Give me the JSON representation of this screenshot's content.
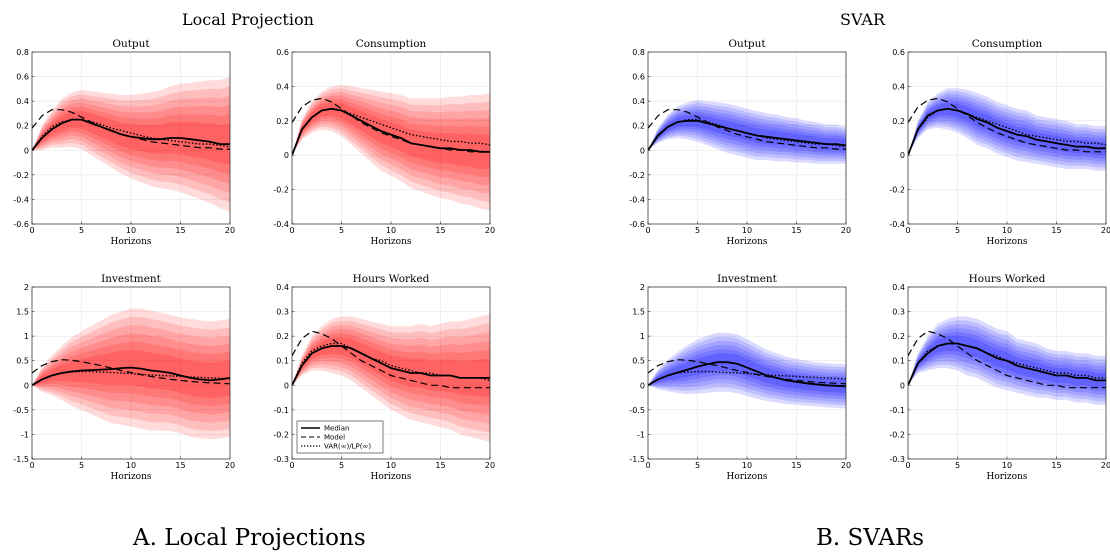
{
  "panels": [
    {
      "id": "lp",
      "title": "Local Projection",
      "caption": "A. Local Projections",
      "fan_color": "#ff0000"
    },
    {
      "id": "svar",
      "title": "SVAR",
      "caption": "B. SVARs",
      "fan_color": "#0000ff"
    }
  ],
  "legend": {
    "median": "Median",
    "model": "Model",
    "var_lp": "VAR(∞)/LP(∞)"
  },
  "chart_data": [
    {
      "type": "line",
      "panel": "lp",
      "title": "Output",
      "xlabel": "Horizons",
      "xlim": [
        0,
        20
      ],
      "ylim": [
        -0.6,
        0.8
      ],
      "xticks": [
        0,
        5,
        10,
        15,
        20
      ],
      "yticks": [
        -0.6,
        -0.4,
        -0.2,
        0,
        0.2,
        0.4,
        0.6,
        0.8
      ],
      "x": [
        0,
        1,
        2,
        3,
        4,
        5,
        6,
        7,
        8,
        9,
        10,
        11,
        12,
        13,
        14,
        15,
        16,
        17,
        18,
        19,
        20
      ],
      "series": [
        {
          "name": "Median",
          "values": [
            0,
            0.1,
            0.17,
            0.22,
            0.25,
            0.25,
            0.22,
            0.19,
            0.16,
            0.13,
            0.11,
            0.1,
            0.09,
            0.09,
            0.1,
            0.1,
            0.09,
            0.08,
            0.07,
            0.05,
            0.05
          ]
        },
        {
          "name": "Model",
          "values": [
            0.18,
            0.28,
            0.33,
            0.33,
            0.31,
            0.27,
            0.23,
            0.19,
            0.16,
            0.13,
            0.11,
            0.09,
            0.07,
            0.06,
            0.05,
            0.04,
            0.03,
            0.02,
            0.02,
            0.01,
            0.01
          ]
        },
        {
          "name": "VAR(∞)/LP(∞)",
          "values": [
            0,
            0.11,
            0.19,
            0.23,
            0.25,
            0.25,
            0.23,
            0.21,
            0.18,
            0.16,
            0.14,
            0.12,
            0.1,
            0.09,
            0.08,
            0.07,
            0.06,
            0.05,
            0.05,
            0.04,
            0.03
          ]
        }
      ],
      "band_halfwidth": [
        0,
        0.1,
        0.15,
        0.2,
        0.22,
        0.24,
        0.26,
        0.28,
        0.3,
        0.32,
        0.34,
        0.36,
        0.38,
        0.4,
        0.42,
        0.44,
        0.46,
        0.48,
        0.5,
        0.52,
        0.55
      ]
    },
    {
      "type": "line",
      "panel": "lp",
      "title": "Consumption",
      "xlabel": "Horizons",
      "xlim": [
        0,
        20
      ],
      "ylim": [
        -0.4,
        0.6
      ],
      "xticks": [
        0,
        5,
        10,
        15,
        20
      ],
      "yticks": [
        -0.4,
        -0.2,
        0,
        0.2,
        0.4,
        0.6
      ],
      "x": [
        0,
        1,
        2,
        3,
        4,
        5,
        6,
        7,
        8,
        9,
        10,
        11,
        12,
        13,
        14,
        15,
        16,
        17,
        18,
        19,
        20
      ],
      "series": [
        {
          "name": "Median",
          "values": [
            0,
            0.15,
            0.22,
            0.26,
            0.27,
            0.26,
            0.23,
            0.2,
            0.17,
            0.14,
            0.12,
            0.1,
            0.07,
            0.06,
            0.05,
            0.04,
            0.04,
            0.03,
            0.03,
            0.02,
            0.02
          ]
        },
        {
          "name": "Model",
          "values": [
            0.19,
            0.28,
            0.32,
            0.33,
            0.31,
            0.27,
            0.23,
            0.19,
            0.16,
            0.13,
            0.11,
            0.09,
            0.07,
            0.06,
            0.05,
            0.04,
            0.03,
            0.03,
            0.02,
            0.02,
            0.02
          ]
        },
        {
          "name": "VAR(∞)/LP(∞)",
          "values": [
            0,
            0.15,
            0.22,
            0.26,
            0.27,
            0.26,
            0.24,
            0.22,
            0.2,
            0.18,
            0.16,
            0.14,
            0.12,
            0.11,
            0.1,
            0.09,
            0.08,
            0.08,
            0.07,
            0.07,
            0.06
          ]
        }
      ],
      "band_halfwidth": [
        0,
        0.06,
        0.09,
        0.11,
        0.13,
        0.15,
        0.17,
        0.19,
        0.21,
        0.23,
        0.24,
        0.25,
        0.26,
        0.27,
        0.28,
        0.29,
        0.3,
        0.31,
        0.32,
        0.33,
        0.34
      ]
    },
    {
      "type": "line",
      "panel": "lp",
      "title": "Investment",
      "xlabel": "Horizons",
      "xlim": [
        0,
        20
      ],
      "ylim": [
        -1.5,
        2
      ],
      "xticks": [
        0,
        5,
        10,
        15,
        20
      ],
      "yticks": [
        -1.5,
        -1,
        -0.5,
        0,
        0.5,
        1,
        1.5,
        2
      ],
      "x": [
        0,
        1,
        2,
        3,
        4,
        5,
        6,
        7,
        8,
        9,
        10,
        11,
        12,
        13,
        14,
        15,
        16,
        17,
        18,
        19,
        20
      ],
      "series": [
        {
          "name": "Median",
          "values": [
            0,
            0.12,
            0.2,
            0.25,
            0.28,
            0.3,
            0.31,
            0.32,
            0.33,
            0.35,
            0.36,
            0.34,
            0.3,
            0.28,
            0.25,
            0.2,
            0.15,
            0.12,
            0.1,
            0.12,
            0.15
          ]
        },
        {
          "name": "Model",
          "values": [
            0.25,
            0.4,
            0.48,
            0.52,
            0.51,
            0.48,
            0.44,
            0.4,
            0.35,
            0.3,
            0.26,
            0.22,
            0.18,
            0.15,
            0.12,
            0.1,
            0.08,
            0.06,
            0.05,
            0.04,
            0.03
          ]
        },
        {
          "name": "VAR(∞)/LP(∞)",
          "values": [
            0,
            0.12,
            0.2,
            0.25,
            0.27,
            0.28,
            0.28,
            0.27,
            0.26,
            0.25,
            0.24,
            0.22,
            0.21,
            0.2,
            0.19,
            0.18,
            0.17,
            0.16,
            0.15,
            0.14,
            0.13
          ]
        }
      ],
      "band_halfwidth": [
        0,
        0.25,
        0.4,
        0.55,
        0.7,
        0.8,
        0.9,
        1.0,
        1.1,
        1.15,
        1.2,
        1.22,
        1.22,
        1.2,
        1.18,
        1.18,
        1.2,
        1.2,
        1.2,
        1.2,
        1.2
      ]
    },
    {
      "type": "line",
      "panel": "lp",
      "title": "Hours Worked",
      "xlabel": "Horizons",
      "xlim": [
        0,
        20
      ],
      "ylim": [
        -0.3,
        0.4
      ],
      "xticks": [
        0,
        5,
        10,
        15,
        20
      ],
      "yticks": [
        -0.3,
        -0.2,
        -0.1,
        0,
        0.1,
        0.2,
        0.3,
        0.4
      ],
      "x": [
        0,
        1,
        2,
        3,
        4,
        5,
        6,
        7,
        8,
        9,
        10,
        11,
        12,
        13,
        14,
        15,
        16,
        17,
        18,
        19,
        20
      ],
      "series": [
        {
          "name": "Median",
          "values": [
            0,
            0.08,
            0.13,
            0.15,
            0.16,
            0.16,
            0.15,
            0.13,
            0.11,
            0.09,
            0.07,
            0.06,
            0.05,
            0.05,
            0.04,
            0.04,
            0.04,
            0.03,
            0.03,
            0.03,
            0.03
          ]
        },
        {
          "name": "Model",
          "values": [
            0.12,
            0.19,
            0.22,
            0.21,
            0.19,
            0.16,
            0.13,
            0.1,
            0.08,
            0.06,
            0.04,
            0.03,
            0.02,
            0.01,
            0.0,
            0.0,
            -0.01,
            -0.01,
            -0.01,
            -0.01,
            -0.01
          ]
        },
        {
          "name": "VAR(∞)/LP(∞)",
          "values": [
            0,
            0.09,
            0.14,
            0.16,
            0.17,
            0.17,
            0.15,
            0.13,
            0.11,
            0.1,
            0.08,
            0.07,
            0.06,
            0.05,
            0.05,
            0.04,
            0.04,
            0.03,
            0.03,
            0.03,
            0.02
          ]
        }
      ],
      "band_halfwidth": [
        0,
        0.04,
        0.07,
        0.09,
        0.11,
        0.12,
        0.13,
        0.14,
        0.15,
        0.16,
        0.17,
        0.18,
        0.19,
        0.2,
        0.2,
        0.21,
        0.22,
        0.23,
        0.24,
        0.25,
        0.26
      ]
    },
    {
      "type": "line",
      "panel": "svar",
      "title": "Output",
      "xlabel": "Horizons",
      "xlim": [
        0,
        20
      ],
      "ylim": [
        -0.6,
        0.8
      ],
      "xticks": [
        0,
        5,
        10,
        15,
        20
      ],
      "yticks": [
        -0.6,
        -0.4,
        -0.2,
        0,
        0.2,
        0.4,
        0.6,
        0.8
      ],
      "x": [
        0,
        1,
        2,
        3,
        4,
        5,
        6,
        7,
        8,
        9,
        10,
        11,
        12,
        13,
        14,
        15,
        16,
        17,
        18,
        19,
        20
      ],
      "series": [
        {
          "name": "Median",
          "values": [
            0,
            0.12,
            0.19,
            0.23,
            0.24,
            0.24,
            0.22,
            0.2,
            0.18,
            0.16,
            0.14,
            0.12,
            0.11,
            0.1,
            0.09,
            0.08,
            0.07,
            0.06,
            0.05,
            0.05,
            0.04
          ]
        },
        {
          "name": "Model",
          "values": [
            0.18,
            0.28,
            0.33,
            0.33,
            0.31,
            0.27,
            0.23,
            0.19,
            0.16,
            0.13,
            0.11,
            0.09,
            0.07,
            0.06,
            0.05,
            0.04,
            0.03,
            0.02,
            0.02,
            0.01,
            0.01
          ]
        },
        {
          "name": "VAR(∞)/LP(∞)",
          "values": [
            0,
            0.11,
            0.19,
            0.23,
            0.25,
            0.25,
            0.23,
            0.21,
            0.18,
            0.16,
            0.14,
            0.12,
            0.1,
            0.09,
            0.08,
            0.07,
            0.06,
            0.05,
            0.05,
            0.04,
            0.03
          ]
        }
      ],
      "band_halfwidth": [
        0,
        0.06,
        0.1,
        0.13,
        0.15,
        0.17,
        0.18,
        0.19,
        0.2,
        0.2,
        0.2,
        0.2,
        0.19,
        0.19,
        0.18,
        0.18,
        0.17,
        0.17,
        0.16,
        0.16,
        0.15
      ]
    },
    {
      "type": "line",
      "panel": "svar",
      "title": "Consumption",
      "xlabel": "Horizons",
      "xlim": [
        0,
        20
      ],
      "ylim": [
        -0.4,
        0.6
      ],
      "xticks": [
        0,
        5,
        10,
        15,
        20
      ],
      "yticks": [
        -0.4,
        -0.2,
        0,
        0.2,
        0.4,
        0.6
      ],
      "x": [
        0,
        1,
        2,
        3,
        4,
        5,
        6,
        7,
        8,
        9,
        10,
        11,
        12,
        13,
        14,
        15,
        16,
        17,
        18,
        19,
        20
      ],
      "series": [
        {
          "name": "Median",
          "values": [
            0,
            0.15,
            0.23,
            0.26,
            0.27,
            0.26,
            0.24,
            0.21,
            0.19,
            0.16,
            0.14,
            0.12,
            0.11,
            0.09,
            0.08,
            0.07,
            0.06,
            0.05,
            0.05,
            0.04,
            0.04
          ]
        },
        {
          "name": "Model",
          "values": [
            0.19,
            0.28,
            0.32,
            0.33,
            0.31,
            0.27,
            0.23,
            0.19,
            0.16,
            0.13,
            0.11,
            0.09,
            0.07,
            0.06,
            0.05,
            0.04,
            0.03,
            0.03,
            0.02,
            0.02,
            0.02
          ]
        },
        {
          "name": "VAR(∞)/LP(∞)",
          "values": [
            0,
            0.15,
            0.22,
            0.26,
            0.27,
            0.26,
            0.24,
            0.22,
            0.2,
            0.18,
            0.16,
            0.14,
            0.12,
            0.11,
            0.1,
            0.09,
            0.08,
            0.08,
            0.07,
            0.07,
            0.06
          ]
        }
      ],
      "band_halfwidth": [
        0,
        0.05,
        0.08,
        0.1,
        0.12,
        0.13,
        0.14,
        0.15,
        0.15,
        0.15,
        0.15,
        0.15,
        0.15,
        0.14,
        0.14,
        0.14,
        0.14,
        0.13,
        0.13,
        0.13,
        0.13
      ]
    },
    {
      "type": "line",
      "panel": "svar",
      "title": "Investment",
      "xlabel": "Horizons",
      "xlim": [
        0,
        20
      ],
      "ylim": [
        -1.5,
        2
      ],
      "xticks": [
        0,
        5,
        10,
        15,
        20
      ],
      "yticks": [
        -1.5,
        -1,
        -0.5,
        0,
        0.5,
        1,
        1.5,
        2
      ],
      "x": [
        0,
        1,
        2,
        3,
        4,
        5,
        6,
        7,
        8,
        9,
        10,
        11,
        12,
        13,
        14,
        15,
        16,
        17,
        18,
        19,
        20
      ],
      "series": [
        {
          "name": "Median",
          "values": [
            0,
            0.12,
            0.2,
            0.26,
            0.32,
            0.38,
            0.43,
            0.47,
            0.47,
            0.44,
            0.36,
            0.28,
            0.2,
            0.15,
            0.1,
            0.07,
            0.04,
            0.02,
            0.0,
            -0.01,
            -0.02
          ]
        },
        {
          "name": "Model",
          "values": [
            0.25,
            0.4,
            0.48,
            0.52,
            0.51,
            0.48,
            0.44,
            0.4,
            0.35,
            0.3,
            0.26,
            0.22,
            0.18,
            0.15,
            0.12,
            0.1,
            0.08,
            0.06,
            0.05,
            0.04,
            0.03
          ]
        },
        {
          "name": "VAR(∞)/LP(∞)",
          "values": [
            0,
            0.12,
            0.2,
            0.25,
            0.27,
            0.28,
            0.28,
            0.27,
            0.26,
            0.25,
            0.24,
            0.22,
            0.21,
            0.2,
            0.19,
            0.18,
            0.17,
            0.16,
            0.15,
            0.14,
            0.13
          ]
        }
      ],
      "band_halfwidth": [
        0,
        0.2,
        0.32,
        0.42,
        0.5,
        0.55,
        0.58,
        0.6,
        0.6,
        0.6,
        0.58,
        0.55,
        0.52,
        0.5,
        0.48,
        0.47,
        0.46,
        0.45,
        0.45,
        0.45,
        0.45
      ]
    },
    {
      "type": "line",
      "panel": "svar",
      "title": "Hours Worked",
      "xlabel": "Horizons",
      "xlim": [
        0,
        20
      ],
      "ylim": [
        -0.3,
        0.4
      ],
      "xticks": [
        0,
        5,
        10,
        15,
        20
      ],
      "yticks": [
        -0.3,
        -0.2,
        -0.1,
        0,
        0.1,
        0.2,
        0.3,
        0.4
      ],
      "x": [
        0,
        1,
        2,
        3,
        4,
        5,
        6,
        7,
        8,
        9,
        10,
        11,
        12,
        13,
        14,
        15,
        16,
        17,
        18,
        19,
        20
      ],
      "series": [
        {
          "name": "Median",
          "values": [
            0,
            0.09,
            0.13,
            0.16,
            0.17,
            0.17,
            0.16,
            0.15,
            0.13,
            0.11,
            0.1,
            0.08,
            0.07,
            0.06,
            0.05,
            0.04,
            0.04,
            0.03,
            0.03,
            0.02,
            0.02
          ]
        },
        {
          "name": "Model",
          "values": [
            0.12,
            0.19,
            0.22,
            0.21,
            0.19,
            0.16,
            0.13,
            0.1,
            0.08,
            0.06,
            0.04,
            0.03,
            0.02,
            0.01,
            0.0,
            0.0,
            -0.01,
            -0.01,
            -0.01,
            -0.01,
            -0.01
          ]
        },
        {
          "name": "VAR(∞)/LP(∞)",
          "values": [
            0,
            0.09,
            0.14,
            0.16,
            0.17,
            0.17,
            0.16,
            0.15,
            0.13,
            0.12,
            0.1,
            0.09,
            0.08,
            0.07,
            0.06,
            0.05,
            0.05,
            0.04,
            0.04,
            0.03,
            0.03
          ]
        }
      ],
      "band_halfwidth": [
        0,
        0.04,
        0.07,
        0.09,
        0.1,
        0.11,
        0.12,
        0.12,
        0.12,
        0.12,
        0.12,
        0.11,
        0.11,
        0.11,
        0.1,
        0.1,
        0.1,
        0.1,
        0.1,
        0.1,
        0.1
      ]
    }
  ]
}
